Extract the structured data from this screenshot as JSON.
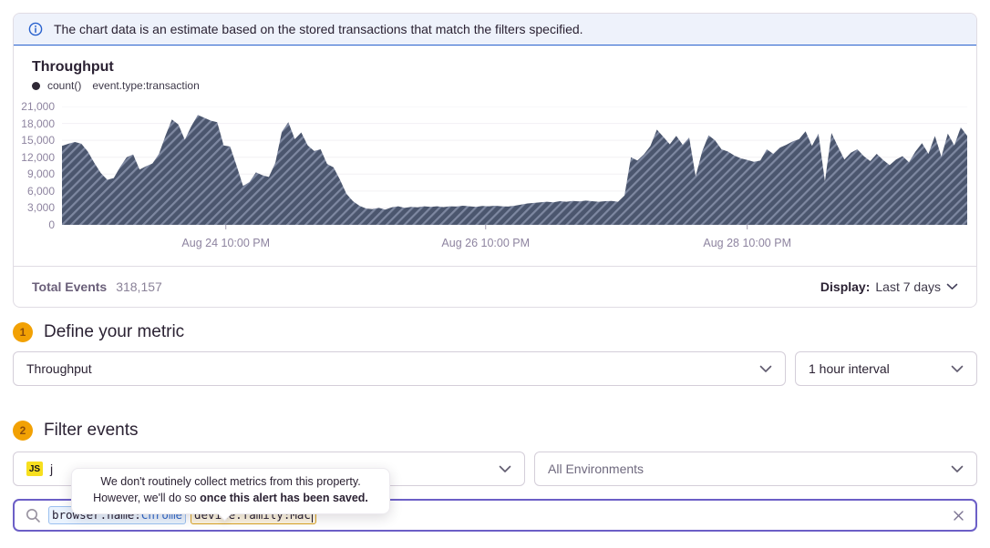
{
  "banner": {
    "text": "The chart data is an estimate based on the stored transactions that match the filters specified."
  },
  "chart": {
    "title": "Throughput",
    "legend_label": "count()",
    "legend_filter": "event.type:transaction"
  },
  "chart_data": {
    "type": "area",
    "title": "Throughput",
    "legend_position": "top-left",
    "grid": true,
    "fill_style": "diagonal-hatch",
    "ylim": [
      0,
      21000
    ],
    "y_tick_step": 3000,
    "y_ticks": [
      "21,000",
      "18,000",
      "15,000",
      "12,000",
      "9,000",
      "6,000",
      "3,000",
      "0"
    ],
    "x_ticks": [
      {
        "label": "Aug 24 10:00 PM",
        "pos": 0.181
      },
      {
        "label": "Aug 26 10:00 PM",
        "pos": 0.468
      },
      {
        "label": "Aug 28 10:00 PM",
        "pos": 0.757
      }
    ],
    "series": [
      {
        "name": "count() event.type:transaction",
        "values": [
          14000,
          14400,
          14700,
          14400,
          13000,
          11000,
          9200,
          8000,
          8300,
          10300,
          12000,
          12500,
          9800,
          10400,
          10900,
          12600,
          15800,
          18700,
          17800,
          15100,
          17500,
          19500,
          19000,
          18500,
          18200,
          14100,
          13900,
          10500,
          6900,
          7600,
          9300,
          8800,
          8500,
          11000,
          16500,
          18200,
          15200,
          16400,
          14100,
          13100,
          13400,
          10800,
          10200,
          8000,
          5500,
          4200,
          3400,
          2900,
          2800,
          3000,
          2700,
          3100,
          3300,
          3000,
          3200,
          3100,
          3300,
          3200,
          3300,
          3150,
          3300,
          3250,
          3400,
          3300,
          3200,
          3350,
          3300,
          3400,
          3300,
          3250,
          3400,
          3600,
          3800,
          3900,
          4000,
          4100,
          4000,
          4200,
          4100,
          4250,
          4150,
          4300,
          4200,
          4100,
          4200,
          4250,
          4100,
          5200,
          12000,
          11400,
          12500,
          14000,
          16900,
          15600,
          14300,
          15800,
          14200,
          15500,
          8600,
          13000,
          15900,
          15000,
          13400,
          13000,
          12300,
          11800,
          11500,
          11200,
          11400,
          13400,
          12600,
          13700,
          14200,
          14800,
          15200,
          16600,
          14000,
          16200,
          7700,
          16300,
          13900,
          11600,
          12800,
          13400,
          12200,
          11300,
          12600,
          11500,
          10600,
          11600,
          12200,
          11100,
          13000,
          14500,
          12600,
          15800,
          12100,
          16200,
          14100,
          17300,
          15800
        ]
      }
    ],
    "colors": {
      "area_base": "#4b566e",
      "area_stripe": "#7e88a1",
      "gridline": "#f2f0f4",
      "baseline": "#d6cfdc",
      "tick": "#a79fb2",
      "axis_label": "#8e84a0"
    }
  },
  "footer": {
    "total_label": "Total Events",
    "total_value": "318,157",
    "display_label": "Display:",
    "display_value": "Last 7 days"
  },
  "steps": [
    {
      "number": "1",
      "title": "Define your metric"
    },
    {
      "number": "2",
      "title": "Filter events"
    }
  ],
  "metric": {
    "metric_select": "Throughput",
    "interval_select": "1 hour interval"
  },
  "filter": {
    "project_platform_badge": "JS",
    "project_name_visible": "j",
    "environment_select": "All Environments"
  },
  "search": {
    "tokens": [
      {
        "key": "browser.name:",
        "value": "Chrome",
        "style": "blue"
      },
      {
        "key": "device.family:",
        "value": "Mac",
        "style": "amber"
      }
    ]
  },
  "tooltip": {
    "line1": "We don't routinely collect metrics from this property.",
    "line2_prefix": "However, we'll do so ",
    "line2_bold": "once this alert has been saved."
  },
  "colors": {
    "accent_purple": "#6c5fc7",
    "info_blue": "#2760cd",
    "step_badge_orange": "#f2a104",
    "js_yellow": "#f7df1e"
  }
}
